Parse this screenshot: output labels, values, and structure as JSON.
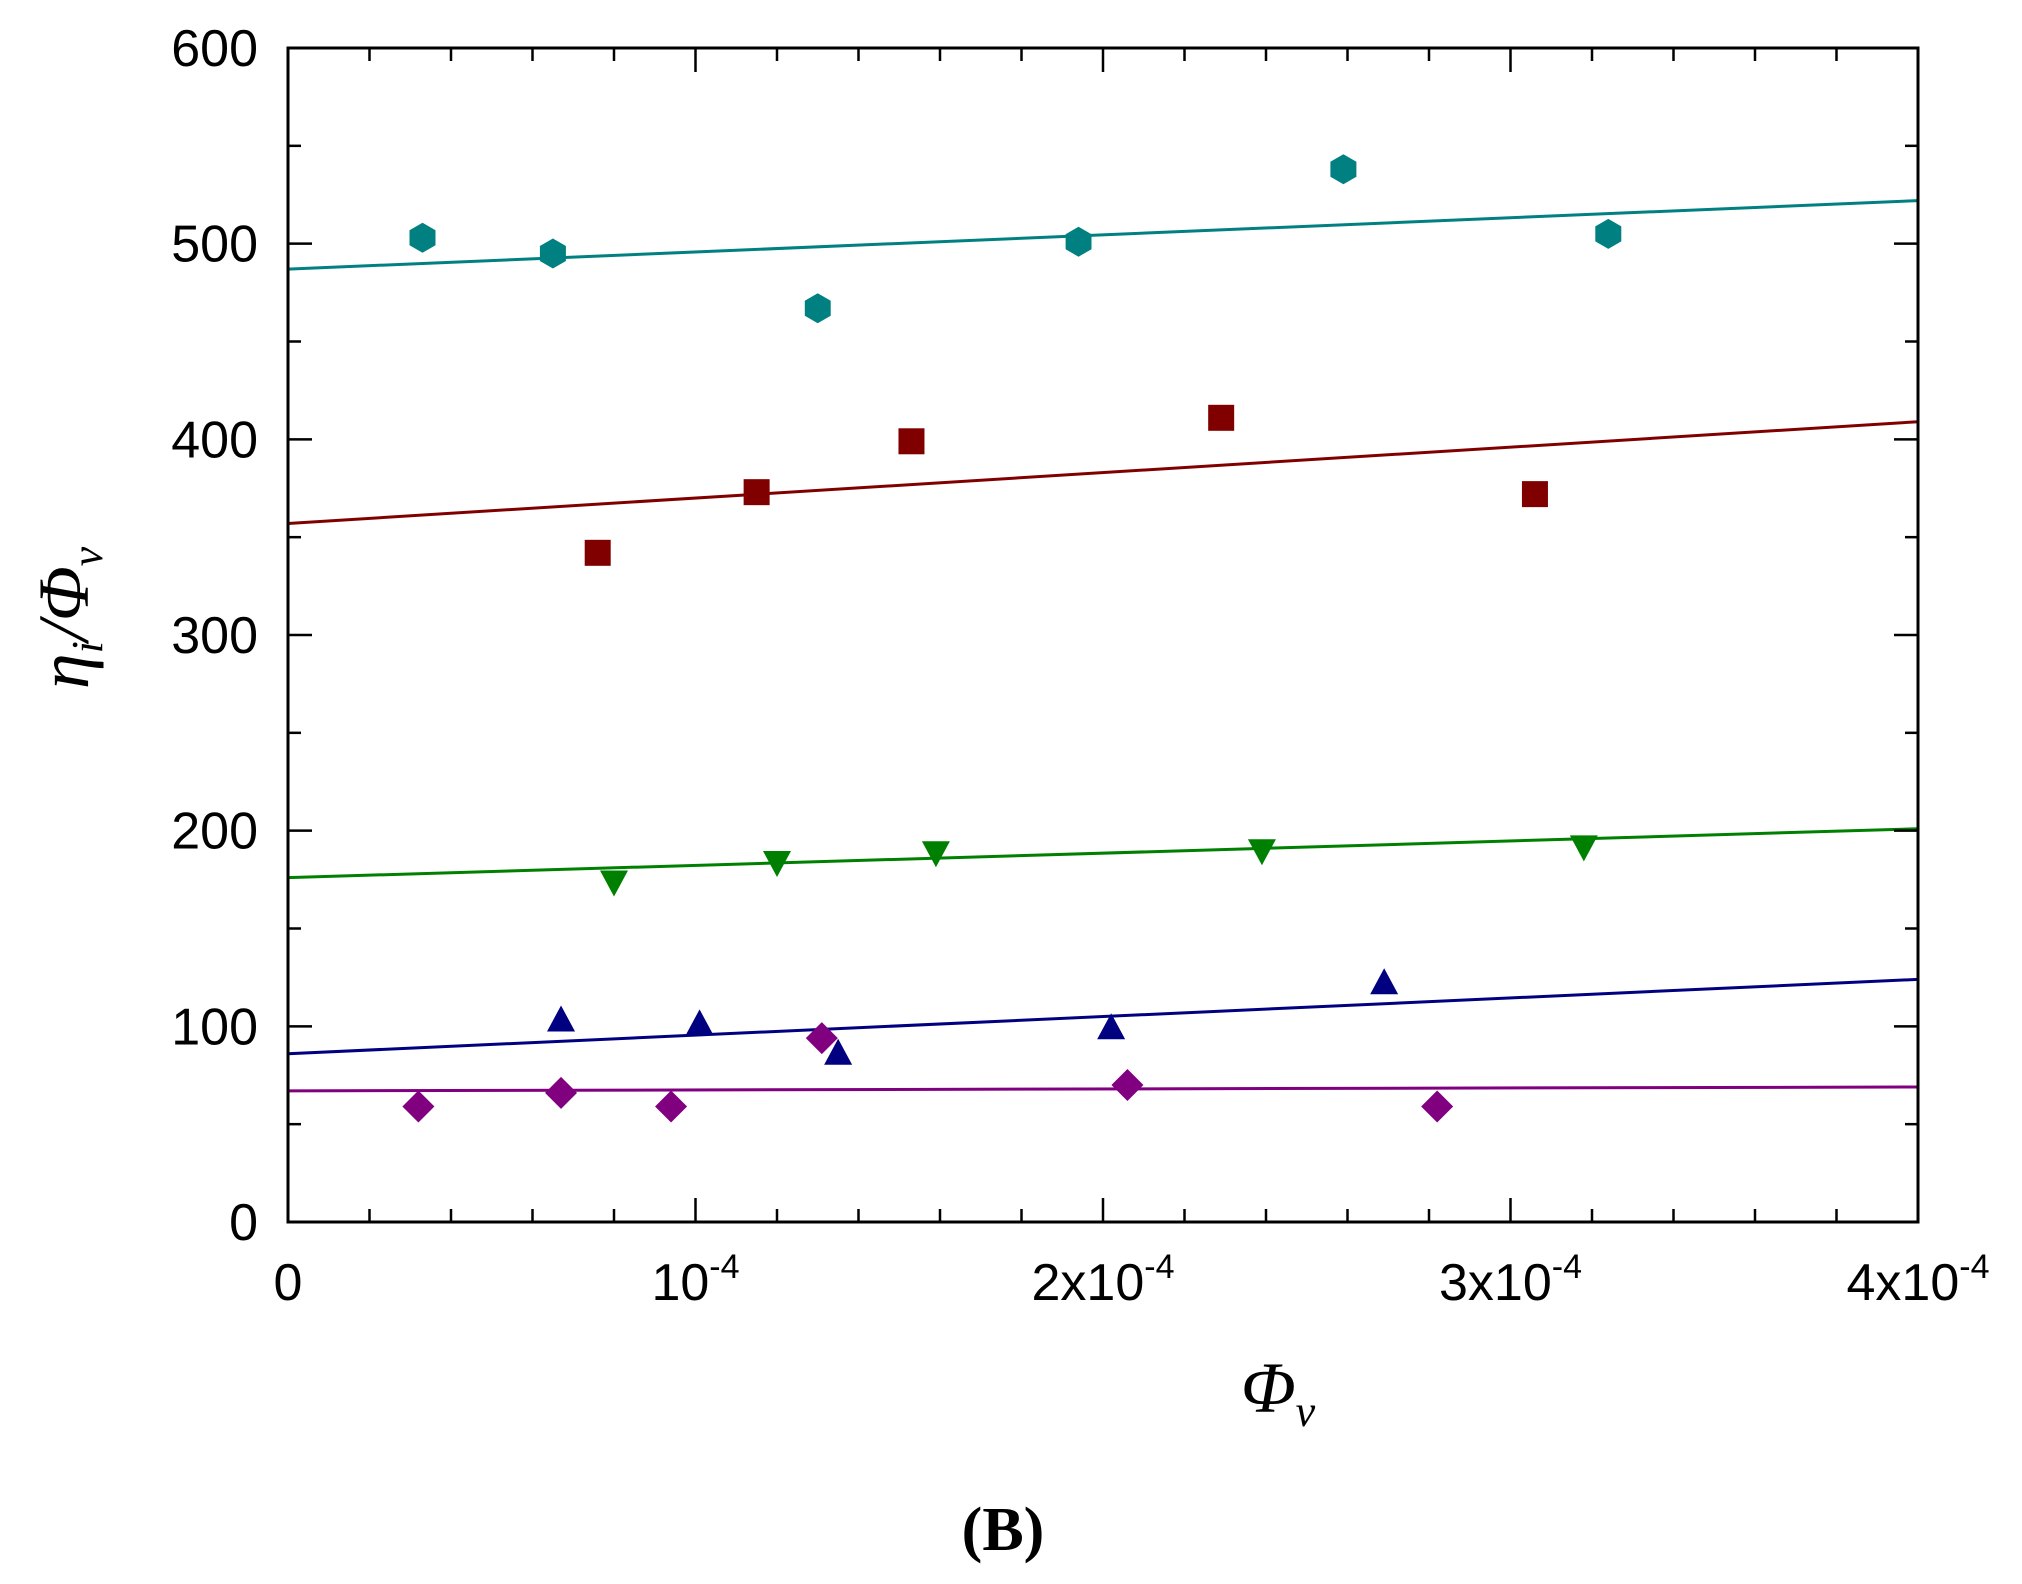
{
  "chart_data": {
    "type": "scatter",
    "title": "",
    "panel_label": "(B)",
    "xlabel": {
      "main": "Φ",
      "sub": "v"
    },
    "ylabel": {
      "main": "η",
      "sub1": "i",
      "mid": "/Φ",
      "sub2": "v"
    },
    "xlim": [
      0,
      0.0004
    ],
    "ylim": [
      0,
      600
    ],
    "x_ticks": [
      {
        "value": 0,
        "mantissa": "0",
        "exp": ""
      },
      {
        "value": 0.0001,
        "mantissa": "10",
        "exp": "-4"
      },
      {
        "value": 0.0002,
        "mantissa": "2x10",
        "exp": "-4"
      },
      {
        "value": 0.0003,
        "mantissa": "3x10",
        "exp": "-4"
      },
      {
        "value": 0.0004,
        "mantissa": "4x10",
        "exp": "-4"
      }
    ],
    "y_ticks": [
      {
        "value": 0,
        "label": "0"
      },
      {
        "value": 100,
        "label": "100"
      },
      {
        "value": 200,
        "label": "200"
      },
      {
        "value": 300,
        "label": "300"
      },
      {
        "value": 400,
        "label": "400"
      },
      {
        "value": 500,
        "label": "500"
      },
      {
        "value": 600,
        "label": "600"
      }
    ],
    "x_minor_step": 2e-05,
    "y_minor_step": 50,
    "grid": false,
    "series": [
      {
        "name": "teal-hexagons",
        "marker": "hexagon",
        "color": "#008080",
        "points": [
          [
            3.3e-05,
            503
          ],
          [
            6.5e-05,
            495
          ],
          [
            0.00013,
            467
          ],
          [
            0.000194,
            501
          ],
          [
            0.000259,
            538
          ],
          [
            0.000324,
            505
          ]
        ],
        "fit": [
          [
            0,
            487
          ],
          [
            0.0004,
            522
          ]
        ]
      },
      {
        "name": "red-squares",
        "marker": "square",
        "color": "#800000",
        "points": [
          [
            7.6e-05,
            342
          ],
          [
            0.000115,
            373
          ],
          [
            0.000153,
            399
          ],
          [
            0.000229,
            411
          ],
          [
            0.000306,
            372
          ]
        ],
        "fit": [
          [
            0,
            357
          ],
          [
            0.0004,
            409
          ]
        ]
      },
      {
        "name": "green-down-triangles",
        "marker": "triangle-down",
        "color": "#008000",
        "points": [
          [
            8e-05,
            174
          ],
          [
            0.00012,
            184
          ],
          [
            0.000159,
            189
          ],
          [
            0.000239,
            190
          ],
          [
            0.000318,
            192
          ]
        ],
        "fit": [
          [
            0,
            176
          ],
          [
            0.0004,
            201
          ]
        ]
      },
      {
        "name": "navy-up-triangles",
        "marker": "triangle-up",
        "color": "#000080",
        "points": [
          [
            6.7e-05,
            103
          ],
          [
            0.000101,
            101
          ],
          [
            0.000135,
            86
          ],
          [
            0.000202,
            99
          ],
          [
            0.000269,
            122
          ]
        ],
        "fit": [
          [
            0,
            86
          ],
          [
            0.0004,
            124
          ]
        ]
      },
      {
        "name": "purple-diamonds",
        "marker": "diamond",
        "color": "#800080",
        "points": [
          [
            3.2e-05,
            59
          ],
          [
            6.7e-05,
            66
          ],
          [
            9.4e-05,
            59
          ],
          [
            0.000131,
            94
          ],
          [
            0.000206,
            70
          ],
          [
            0.000282,
            59
          ]
        ],
        "fit": [
          [
            0,
            67
          ],
          [
            0.0004,
            69
          ]
        ]
      }
    ]
  }
}
